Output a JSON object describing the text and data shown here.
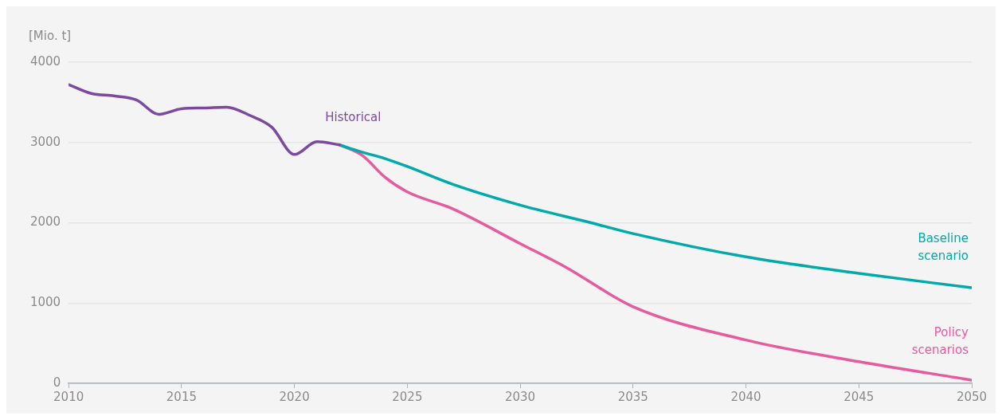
{
  "chart_data": {
    "type": "line",
    "ylabel": "[Mio. t]",
    "xlim": [
      2010,
      2050
    ],
    "xticks": [
      2010,
      2015,
      2020,
      2025,
      2030,
      2035,
      2040,
      2045,
      2050
    ],
    "ylim": [
      0,
      4000
    ],
    "yticks": [
      0,
      1000,
      2000,
      3000,
      4000
    ],
    "grid": "y",
    "legend": false,
    "marker": "none",
    "line_style": "solid",
    "series": [
      {
        "name": "Historical",
        "color": "#7b4aa0",
        "x": [
          2010,
          2011,
          2012,
          2013,
          2014,
          2015,
          2016,
          2017,
          2018,
          2019,
          2020,
          2021,
          2022
        ],
        "values": [
          3720,
          3610,
          3580,
          3530,
          3350,
          3420,
          3430,
          3440,
          3340,
          3190,
          2850,
          3010,
          2970
        ]
      },
      {
        "name": "Baseline scenario",
        "color": "#00aaaa",
        "x": [
          2022,
          2023,
          2024,
          2025,
          2027,
          2030,
          2033,
          2035,
          2040,
          2045,
          2050
        ],
        "values": [
          2970,
          2880,
          2800,
          2700,
          2480,
          2220,
          2010,
          1865,
          1575,
          1370,
          1190
        ]
      },
      {
        "name": "Policy scenarios",
        "color": "#e65a9e",
        "x": [
          2022,
          2023,
          2024,
          2025,
          2027,
          2030,
          2032,
          2035,
          2040,
          2045,
          2050
        ],
        "values": [
          2970,
          2840,
          2570,
          2385,
          2175,
          1740,
          1450,
          955,
          540,
          270,
          40
        ]
      }
    ]
  }
}
